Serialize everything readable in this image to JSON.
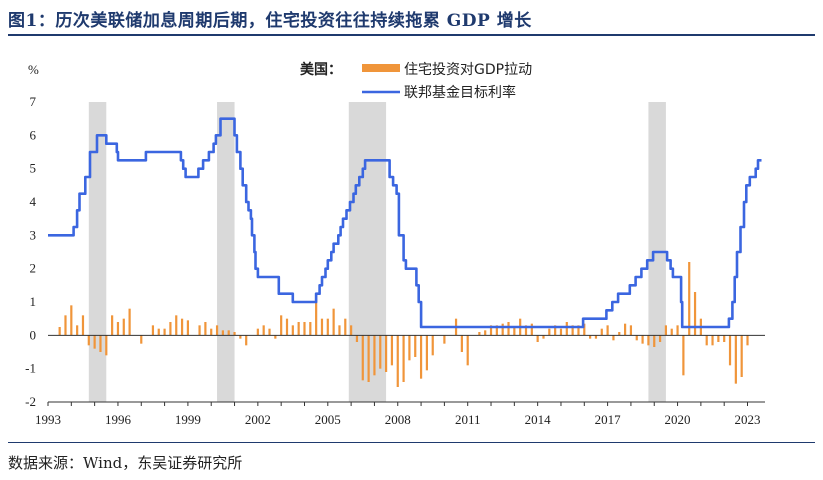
{
  "header": {
    "title": "图1：历次美联储加息周期后期，住宅投资往往持续拖累 GDP 增长"
  },
  "footer": {
    "source": "数据来源：Wind，东吴证券研究所"
  },
  "chart_data": {
    "type": "bar+line",
    "title": "图1：历次美联储加息周期后期，住宅投资往往持续拖累 GDP 增长",
    "ylabel": "%",
    "ylim": [
      -2,
      7
    ],
    "yticks": [
      -2,
      -1,
      0,
      1,
      2,
      3,
      4,
      5,
      6,
      7
    ],
    "xlim": [
      1993.0,
      2023.75
    ],
    "xticks": [
      1993,
      1996,
      1999,
      2002,
      2005,
      2008,
      2011,
      2014,
      2017,
      2020,
      2023
    ],
    "legend_prefix": "美国：",
    "legend_position": "top-center",
    "colors": {
      "bar": "#f0953a",
      "line": "#3b66e0",
      "shade": "#d9d9d9"
    },
    "shaded_periods": [
      [
        1994.75,
        1995.5
      ],
      [
        2000.25,
        2001.0
      ],
      [
        2005.9,
        2007.5
      ],
      [
        2018.75,
        2019.5
      ]
    ],
    "series": [
      {
        "name": "住宅投资对GDP拉动",
        "type": "bar",
        "points": [
          [
            1993.5,
            0.25
          ],
          [
            1993.75,
            0.6
          ],
          [
            1994.0,
            0.9
          ],
          [
            1994.25,
            0.3
          ],
          [
            1994.5,
            0.6
          ],
          [
            1994.75,
            -0.3
          ],
          [
            1995.0,
            -0.4
          ],
          [
            1995.25,
            -0.5
          ],
          [
            1995.5,
            -0.6
          ],
          [
            1995.75,
            0.6
          ],
          [
            1996.0,
            0.4
          ],
          [
            1996.25,
            0.5
          ],
          [
            1996.5,
            0.8
          ],
          [
            1997.0,
            -0.25
          ],
          [
            1997.5,
            0.3
          ],
          [
            1997.75,
            0.2
          ],
          [
            1998.0,
            0.2
          ],
          [
            1998.25,
            0.4
          ],
          [
            1998.5,
            0.6
          ],
          [
            1998.75,
            0.5
          ],
          [
            1999.0,
            0.45
          ],
          [
            1999.5,
            0.3
          ],
          [
            1999.75,
            0.4
          ],
          [
            2000.0,
            0.2
          ],
          [
            2000.25,
            0.3
          ],
          [
            2000.5,
            0.15
          ],
          [
            2000.75,
            0.15
          ],
          [
            2001.0,
            0.1
          ],
          [
            2001.25,
            -0.1
          ],
          [
            2001.5,
            -0.3
          ],
          [
            2002.0,
            0.2
          ],
          [
            2002.25,
            0.3
          ],
          [
            2002.5,
            0.2
          ],
          [
            2002.75,
            -0.1
          ],
          [
            2003.0,
            0.6
          ],
          [
            2003.25,
            0.5
          ],
          [
            2003.5,
            0.3
          ],
          [
            2003.75,
            0.4
          ],
          [
            2004.0,
            0.4
          ],
          [
            2004.25,
            0.4
          ],
          [
            2004.5,
            1.25
          ],
          [
            2004.75,
            0.5
          ],
          [
            2005.0,
            0.5
          ],
          [
            2005.25,
            0.8
          ],
          [
            2005.5,
            0.3
          ],
          [
            2005.75,
            0.5
          ],
          [
            2006.0,
            0.3
          ],
          [
            2006.25,
            -0.2
          ],
          [
            2006.5,
            -1.35
          ],
          [
            2006.75,
            -1.4
          ],
          [
            2007.0,
            -1.2
          ],
          [
            2007.25,
            -1.0
          ],
          [
            2007.5,
            -1.1
          ],
          [
            2007.75,
            -0.9
          ],
          [
            2008.0,
            -1.55
          ],
          [
            2008.25,
            -1.4
          ],
          [
            2008.5,
            -0.75
          ],
          [
            2008.75,
            -0.65
          ],
          [
            2009.0,
            -1.3
          ],
          [
            2009.25,
            -1.05
          ],
          [
            2009.5,
            -0.6
          ],
          [
            2010.0,
            -0.25
          ],
          [
            2010.5,
            0.5
          ],
          [
            2010.75,
            -0.5
          ],
          [
            2011.0,
            -0.9
          ],
          [
            2011.5,
            0.1
          ],
          [
            2011.75,
            0.15
          ],
          [
            2012.0,
            0.3
          ],
          [
            2012.25,
            0.3
          ],
          [
            2012.5,
            0.35
          ],
          [
            2012.75,
            0.4
          ],
          [
            2013.0,
            0.25
          ],
          [
            2013.25,
            0.5
          ],
          [
            2013.5,
            0.3
          ],
          [
            2013.75,
            0.35
          ],
          [
            2014.0,
            -0.2
          ],
          [
            2014.25,
            -0.1
          ],
          [
            2014.5,
            0.2
          ],
          [
            2014.75,
            0.3
          ],
          [
            2015.0,
            0.2
          ],
          [
            2015.25,
            0.4
          ],
          [
            2015.5,
            0.3
          ],
          [
            2015.75,
            0.3
          ],
          [
            2016.0,
            0.35
          ],
          [
            2016.25,
            -0.1
          ],
          [
            2016.5,
            -0.1
          ],
          [
            2016.75,
            0.2
          ],
          [
            2017.0,
            0.3
          ],
          [
            2017.25,
            -0.15
          ],
          [
            2017.5,
            0.1
          ],
          [
            2017.75,
            0.35
          ],
          [
            2018.0,
            0.3
          ],
          [
            2018.25,
            -0.15
          ],
          [
            2018.5,
            -0.25
          ],
          [
            2018.75,
            -0.3
          ],
          [
            2019.0,
            -0.35
          ],
          [
            2019.25,
            -0.2
          ],
          [
            2019.5,
            0.3
          ],
          [
            2019.75,
            0.2
          ],
          [
            2020.0,
            0.3
          ],
          [
            2020.25,
            -1.2
          ],
          [
            2020.5,
            2.2
          ],
          [
            2020.75,
            1.3
          ],
          [
            2021.0,
            0.5
          ],
          [
            2021.25,
            -0.3
          ],
          [
            2021.5,
            -0.3
          ],
          [
            2021.75,
            -0.2
          ],
          [
            2022.0,
            -0.2
          ],
          [
            2022.25,
            -0.9
          ],
          [
            2022.5,
            -1.45
          ],
          [
            2022.75,
            -1.25
          ],
          [
            2023.0,
            -0.3
          ]
        ]
      },
      {
        "name": "联邦基金目标利率",
        "type": "step-line",
        "points": [
          [
            1993.0,
            3.0
          ],
          [
            1994.0,
            3.0
          ],
          [
            1994.1,
            3.25
          ],
          [
            1994.25,
            3.75
          ],
          [
            1994.35,
            4.25
          ],
          [
            1994.6,
            4.75
          ],
          [
            1994.8,
            5.5
          ],
          [
            1995.1,
            6.0
          ],
          [
            1995.5,
            5.75
          ],
          [
            1995.95,
            5.5
          ],
          [
            1996.0,
            5.25
          ],
          [
            1997.2,
            5.5
          ],
          [
            1998.7,
            5.25
          ],
          [
            1998.8,
            5.0
          ],
          [
            1998.9,
            4.75
          ],
          [
            1999.45,
            5.0
          ],
          [
            1999.65,
            5.25
          ],
          [
            1999.9,
            5.5
          ],
          [
            2000.1,
            5.75
          ],
          [
            2000.2,
            6.0
          ],
          [
            2000.4,
            6.5
          ],
          [
            2001.0,
            6.0
          ],
          [
            2001.1,
            5.5
          ],
          [
            2001.25,
            5.0
          ],
          [
            2001.35,
            4.5
          ],
          [
            2001.5,
            4.0
          ],
          [
            2001.6,
            3.75
          ],
          [
            2001.7,
            3.5
          ],
          [
            2001.75,
            3.0
          ],
          [
            2001.85,
            2.5
          ],
          [
            2001.9,
            2.0
          ],
          [
            2002.0,
            1.75
          ],
          [
            2002.9,
            1.25
          ],
          [
            2003.5,
            1.0
          ],
          [
            2004.5,
            1.25
          ],
          [
            2004.65,
            1.5
          ],
          [
            2004.75,
            1.75
          ],
          [
            2004.9,
            2.0
          ],
          [
            2005.0,
            2.25
          ],
          [
            2005.15,
            2.5
          ],
          [
            2005.25,
            2.75
          ],
          [
            2005.45,
            3.0
          ],
          [
            2005.55,
            3.25
          ],
          [
            2005.65,
            3.5
          ],
          [
            2005.8,
            3.75
          ],
          [
            2005.95,
            4.0
          ],
          [
            2006.1,
            4.25
          ],
          [
            2006.2,
            4.5
          ],
          [
            2006.35,
            4.75
          ],
          [
            2006.5,
            5.0
          ],
          [
            2006.6,
            5.25
          ],
          [
            2007.65,
            4.75
          ],
          [
            2007.8,
            4.5
          ],
          [
            2007.95,
            4.25
          ],
          [
            2008.05,
            3.0
          ],
          [
            2008.25,
            2.25
          ],
          [
            2008.35,
            2.0
          ],
          [
            2008.8,
            1.5
          ],
          [
            2008.9,
            1.0
          ],
          [
            2009.0,
            0.25
          ],
          [
            2015.95,
            0.5
          ],
          [
            2016.95,
            0.75
          ],
          [
            2017.2,
            1.0
          ],
          [
            2017.45,
            1.25
          ],
          [
            2017.95,
            1.5
          ],
          [
            2018.2,
            1.75
          ],
          [
            2018.45,
            2.0
          ],
          [
            2018.7,
            2.25
          ],
          [
            2018.95,
            2.5
          ],
          [
            2019.55,
            2.25
          ],
          [
            2019.7,
            2.0
          ],
          [
            2019.8,
            1.75
          ],
          [
            2020.15,
            1.0
          ],
          [
            2020.2,
            0.25
          ],
          [
            2022.2,
            0.5
          ],
          [
            2022.35,
            1.0
          ],
          [
            2022.45,
            1.75
          ],
          [
            2022.55,
            2.5
          ],
          [
            2022.7,
            3.25
          ],
          [
            2022.85,
            4.0
          ],
          [
            2022.95,
            4.5
          ],
          [
            2023.1,
            4.75
          ],
          [
            2023.35,
            5.0
          ],
          [
            2023.45,
            5.25
          ],
          [
            2023.6,
            5.25
          ]
        ]
      }
    ]
  }
}
